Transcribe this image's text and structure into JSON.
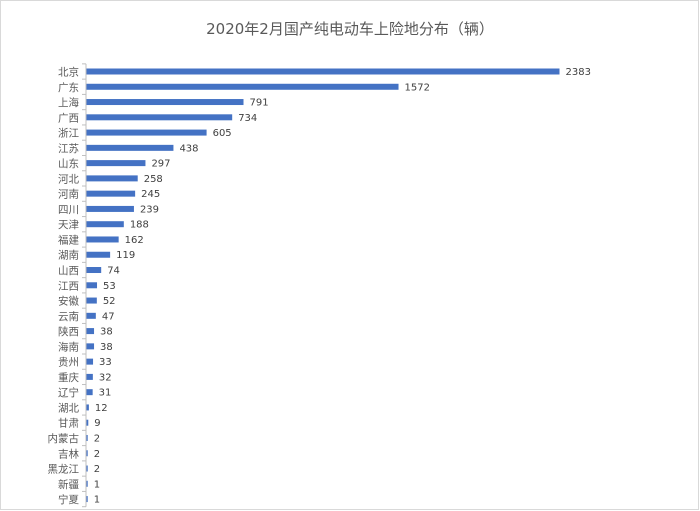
{
  "chart_data": {
    "type": "bar",
    "orientation": "horizontal",
    "title": "2020年2月国产纯电动车上险地分布（辆）",
    "categories": [
      "北京",
      "广东",
      "上海",
      "广西",
      "浙江",
      "江苏",
      "山东",
      "河北",
      "河南",
      "四川",
      "天津",
      "福建",
      "湖南",
      "山西",
      "江西",
      "安徽",
      "云南",
      "陕西",
      "海南",
      "贵州",
      "重庆",
      "辽宁",
      "湖北",
      "甘肃",
      "内蒙古",
      "吉林",
      "黑龙江",
      "新疆",
      "宁夏"
    ],
    "values": [
      2383,
      1572,
      791,
      734,
      605,
      438,
      297,
      258,
      245,
      239,
      188,
      162,
      119,
      74,
      53,
      52,
      47,
      38,
      38,
      33,
      32,
      31,
      12,
      9,
      2,
      2,
      2,
      1,
      1
    ],
    "xlim": [
      0,
      2383
    ],
    "bar_color": "#4472c4",
    "axis_color": "#bfbfbf",
    "grid": false,
    "legend": "none"
  }
}
